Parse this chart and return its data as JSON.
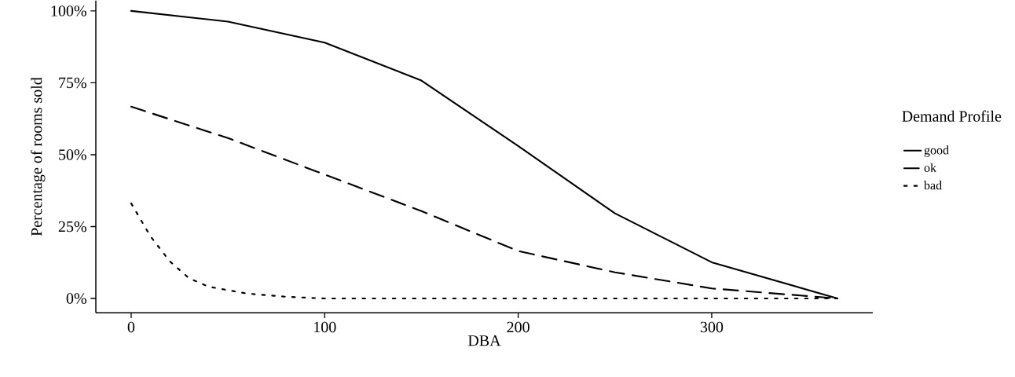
{
  "chart_data": {
    "type": "line",
    "xlabel": "DBA",
    "ylabel": "Percentage of rooms sold",
    "legend_title": "Demand Profile",
    "xlim": [
      -18.25,
      383.25
    ],
    "xticks": [
      0,
      100,
      200,
      300
    ],
    "ylim": [
      -5,
      103.6
    ],
    "yticks": [
      {
        "value": 0,
        "label": "0%"
      },
      {
        "value": 25,
        "label": "25%"
      },
      {
        "value": 50,
        "label": "50%"
      },
      {
        "value": 75,
        "label": "75%"
      },
      {
        "value": 100,
        "label": "100%"
      }
    ],
    "legend": "right",
    "grid": false,
    "series": [
      {
        "name": "good",
        "color": "#000000",
        "line_style": "solid",
        "x": [
          0,
          50,
          100,
          150,
          200,
          250,
          300,
          365
        ],
        "values": [
          100,
          96.3,
          89,
          75.8,
          53,
          29.6,
          12.6,
          0
        ]
      },
      {
        "name": "ok",
        "color": "#000000",
        "line_style": "dashed",
        "x": [
          0,
          50,
          100,
          150,
          200,
          250,
          300,
          365
        ],
        "values": [
          66.7,
          55.8,
          43.1,
          30.4,
          16.5,
          9.1,
          3.5,
          0
        ]
      },
      {
        "name": "bad",
        "color": "#000000",
        "line_style": "dotted",
        "x": [
          0,
          10,
          20,
          30,
          40,
          60,
          80,
          100,
          365
        ],
        "values": [
          33.1,
          21.6,
          12.9,
          7,
          4.1,
          1.7,
          0.6,
          0,
          0
        ]
      }
    ]
  }
}
